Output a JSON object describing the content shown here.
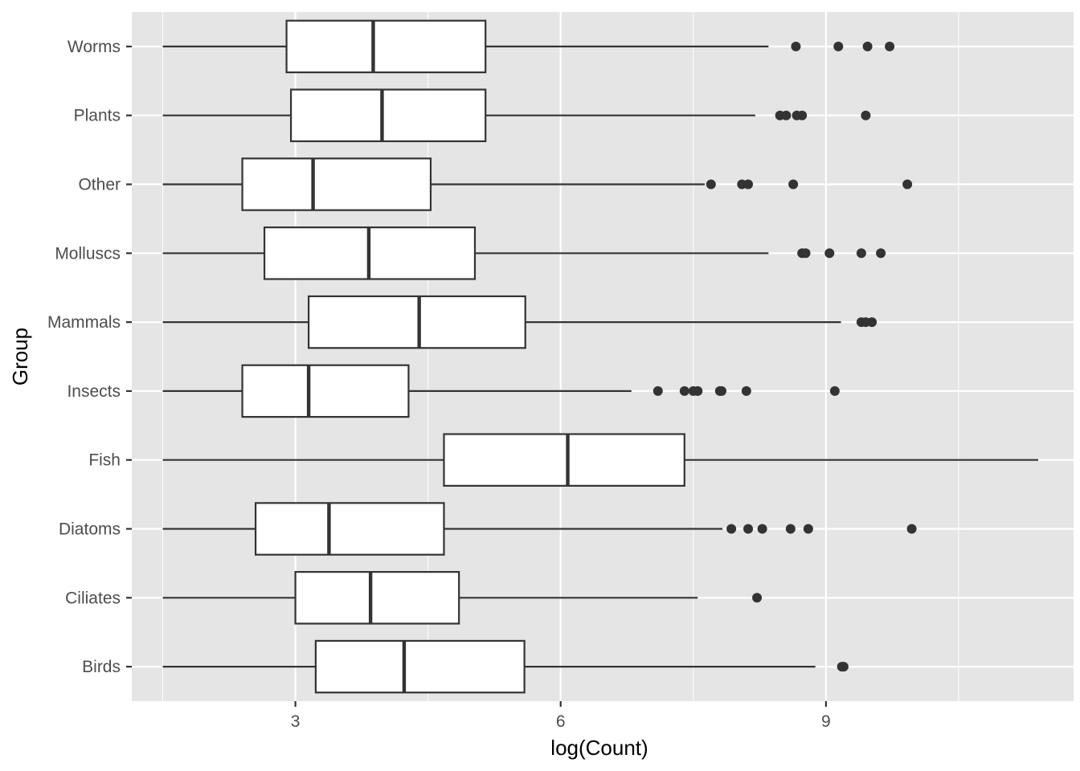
{
  "chart_data": {
    "type": "boxplot",
    "orientation": "horizontal",
    "xlabel": "log(Count)",
    "ylabel": "Group",
    "xlim": [
      1.15,
      11.8
    ],
    "x_ticks": [
      3,
      6,
      9
    ],
    "x_minor_ticks": [
      1.5,
      4.5,
      7.5,
      10.5
    ],
    "grid": true,
    "colors": {
      "panel": "#e5e5e5",
      "grid": "#ffffff",
      "box_fill": "#ffffff",
      "box_stroke": "#333333",
      "outlier": "#333333",
      "tick_text": "#4d4d4d"
    },
    "groups": [
      {
        "name": "Birds",
        "whisker_low": 1.5,
        "q1": 3.23,
        "median": 4.23,
        "q3": 5.59,
        "whisker_high": 8.88,
        "outliers": [
          9.18,
          9.2
        ]
      },
      {
        "name": "Ciliates",
        "whisker_low": 1.5,
        "q1": 3.0,
        "median": 3.85,
        "q3": 4.85,
        "whisker_high": 7.55,
        "outliers": [
          8.22
        ]
      },
      {
        "name": "Diatoms",
        "whisker_low": 1.5,
        "q1": 2.55,
        "median": 3.38,
        "q3": 4.68,
        "whisker_high": 7.83,
        "outliers": [
          7.93,
          8.12,
          8.28,
          8.6,
          8.8,
          9.97
        ]
      },
      {
        "name": "Fish",
        "whisker_low": 1.5,
        "q1": 4.68,
        "median": 6.08,
        "q3": 7.4,
        "whisker_high": 11.4,
        "outliers": []
      },
      {
        "name": "Insects",
        "whisker_low": 1.5,
        "q1": 2.4,
        "median": 3.15,
        "q3": 4.28,
        "whisker_high": 6.8,
        "outliers": [
          7.1,
          7.4,
          7.5,
          7.55,
          7.8,
          7.82,
          8.1,
          9.1
        ]
      },
      {
        "name": "Mammals",
        "whisker_low": 1.5,
        "q1": 3.15,
        "median": 4.4,
        "q3": 5.6,
        "whisker_high": 9.17,
        "outliers": [
          9.4,
          9.45,
          9.52
        ]
      },
      {
        "name": "Molluscs",
        "whisker_low": 1.5,
        "q1": 2.65,
        "median": 3.83,
        "q3": 5.03,
        "whisker_high": 8.35,
        "outliers": [
          8.73,
          8.77,
          9.04,
          9.4,
          9.62
        ]
      },
      {
        "name": "Other",
        "whisker_low": 1.5,
        "q1": 2.4,
        "median": 3.2,
        "q3": 4.53,
        "whisker_high": 7.63,
        "outliers": [
          7.7,
          8.05,
          8.12,
          8.63,
          9.92
        ]
      },
      {
        "name": "Plants",
        "whisker_low": 1.5,
        "q1": 2.95,
        "median": 3.98,
        "q3": 5.15,
        "whisker_high": 8.2,
        "outliers": [
          8.48,
          8.55,
          8.67,
          8.73,
          9.45
        ]
      },
      {
        "name": "Worms",
        "whisker_low": 1.5,
        "q1": 2.9,
        "median": 3.88,
        "q3": 5.15,
        "whisker_high": 8.35,
        "outliers": [
          8.66,
          9.14,
          9.47,
          9.72
        ]
      }
    ]
  }
}
